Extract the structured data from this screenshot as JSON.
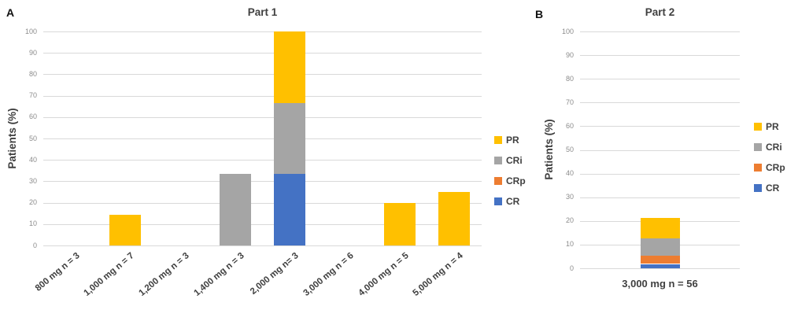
{
  "figure": {
    "panel_a_label": "A",
    "panel_b_label": "B",
    "background": "#ffffff"
  },
  "colors": {
    "PR": "#FFC000",
    "CRi": "#A5A5A5",
    "CRp": "#ED7D31",
    "CR": "#4472C4",
    "gridline": "#D9D9D9",
    "tick_text": "#8C8C8C",
    "label_text": "#404040"
  },
  "chart_data": [
    {
      "type": "bar",
      "stacked": true,
      "title": "Part 1",
      "ylabel": "Patients (%)",
      "ylim": [
        0,
        100
      ],
      "ytick_step": 10,
      "grid": true,
      "legend_position": "right",
      "categories": [
        "800 mg n = 3",
        "1,000 mg n = 7",
        "1,200 mg n = 3",
        "1,400 mg n = 3",
        "2,000 mg n= 3",
        "3,000 mg n = 6",
        "4,000 mg n = 5",
        "5,000 mg n = 4"
      ],
      "series": [
        {
          "name": "CR",
          "color": "#4472C4",
          "values": [
            0,
            0,
            0,
            0,
            33.3,
            0,
            0,
            0
          ]
        },
        {
          "name": "CRp",
          "color": "#ED7D31",
          "values": [
            0,
            0,
            0,
            0,
            0,
            0,
            0,
            0
          ]
        },
        {
          "name": "CRi",
          "color": "#A5A5A5",
          "values": [
            0,
            0,
            0,
            33.3,
            33.3,
            0,
            0,
            0
          ]
        },
        {
          "name": "PR",
          "color": "#FFC000",
          "values": [
            0,
            14.3,
            0,
            0,
            33.4,
            0,
            20,
            25
          ]
        }
      ],
      "legend": [
        "PR",
        "CRi",
        "CRp",
        "CR"
      ]
    },
    {
      "type": "bar",
      "stacked": true,
      "title": "Part 2",
      "ylabel": "Patients (%)",
      "ylim": [
        0,
        100
      ],
      "ytick_step": 10,
      "grid": true,
      "legend_position": "right",
      "categories": [
        "3,000 mg n = 56"
      ],
      "series": [
        {
          "name": "CR",
          "color": "#4472C4",
          "values": [
            1.8
          ]
        },
        {
          "name": "CRp",
          "color": "#ED7D31",
          "values": [
            3.6
          ]
        },
        {
          "name": "CRi",
          "color": "#A5A5A5",
          "values": [
            7.1
          ]
        },
        {
          "name": "PR",
          "color": "#FFC000",
          "values": [
            8.9
          ]
        }
      ],
      "legend": [
        "PR",
        "CRi",
        "CRp",
        "CR"
      ]
    }
  ]
}
